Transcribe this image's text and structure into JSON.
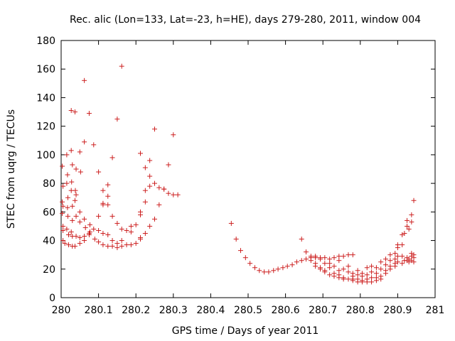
{
  "chart_data": {
    "type": "scatter",
    "title": "Rec. alic (Lon=133, Lat=-23, h=HE), days 279-280, 2011, window 004",
    "xlabel": "GPS time / Days of year 2011",
    "ylabel": "STEC from uqrg / TECUs",
    "xlim": [
      280,
      281
    ],
    "ylim": [
      0,
      180
    ],
    "xticks": [
      "280",
      "280.1",
      "280.2",
      "280.3",
      "280.4",
      "280.5",
      "280.6",
      "280.7",
      "280.8",
      "280.9",
      "281"
    ],
    "yticks": [
      "0",
      "20",
      "40",
      "60",
      "80",
      "100",
      "120",
      "140",
      "160",
      "180"
    ],
    "grid": false,
    "marker": "plus",
    "color": "#cc1f1f",
    "series": [
      {
        "points": [
          [
            280.003,
            92
          ],
          [
            280.005,
            78
          ],
          [
            280.003,
            67
          ],
          [
            280.005,
            64
          ],
          [
            280.003,
            59
          ],
          [
            280.005,
            50
          ],
          [
            280.005,
            47
          ],
          [
            280.005,
            40
          ],
          [
            280.01,
            38
          ],
          [
            280.015,
            100
          ],
          [
            280.017,
            86
          ],
          [
            280.015,
            80
          ],
          [
            280.018,
            70
          ],
          [
            280.017,
            63
          ],
          [
            280.018,
            57
          ],
          [
            280.015,
            48
          ],
          [
            280.02,
            44
          ],
          [
            280.02,
            37
          ],
          [
            280.027,
            131
          ],
          [
            280.027,
            103
          ],
          [
            280.03,
            93
          ],
          [
            280.028,
            81
          ],
          [
            280.027,
            75
          ],
          [
            280.03,
            64
          ],
          [
            280.03,
            54
          ],
          [
            280.027,
            46
          ],
          [
            280.03,
            43
          ],
          [
            280.03,
            36
          ],
          [
            280.037,
            130
          ],
          [
            280.04,
            90
          ],
          [
            280.038,
            75
          ],
          [
            280.04,
            72
          ],
          [
            280.037,
            68
          ],
          [
            280.04,
            57
          ],
          [
            280.04,
            43
          ],
          [
            280.037,
            36
          ],
          [
            280.05,
            102
          ],
          [
            280.052,
            88
          ],
          [
            280.05,
            60
          ],
          [
            280.05,
            53
          ],
          [
            280.05,
            42
          ],
          [
            280.05,
            38
          ],
          [
            280.062,
            152
          ],
          [
            280.062,
            109
          ],
          [
            280.062,
            55
          ],
          [
            280.065,
            49
          ],
          [
            280.062,
            43
          ],
          [
            280.062,
            40
          ],
          [
            280.075,
            129
          ],
          [
            280.077,
            51
          ],
          [
            280.077,
            46
          ],
          [
            280.075,
            45
          ],
          [
            280.075,
            44
          ],
          [
            280.087,
            107
          ],
          [
            280.087,
            48
          ],
          [
            280.09,
            41
          ],
          [
            280.1,
            88
          ],
          [
            280.1,
            57
          ],
          [
            280.1,
            47
          ],
          [
            280.1,
            39
          ],
          [
            280.112,
            75
          ],
          [
            280.112,
            66
          ],
          [
            280.112,
            65
          ],
          [
            280.112,
            45
          ],
          [
            280.112,
            37
          ],
          [
            280.125,
            79
          ],
          [
            280.125,
            71
          ],
          [
            280.125,
            65
          ],
          [
            280.125,
            44
          ],
          [
            280.125,
            36
          ],
          [
            280.137,
            98
          ],
          [
            280.137,
            57
          ],
          [
            280.137,
            40
          ],
          [
            280.137,
            36
          ],
          [
            280.15,
            125
          ],
          [
            280.15,
            52
          ],
          [
            280.15,
            38
          ],
          [
            280.15,
            35
          ],
          [
            280.162,
            162
          ],
          [
            280.162,
            48
          ],
          [
            280.162,
            40
          ],
          [
            280.162,
            36
          ],
          [
            280.175,
            47
          ],
          [
            280.175,
            37
          ],
          [
            280.187,
            50
          ],
          [
            280.187,
            46
          ],
          [
            280.187,
            37
          ],
          [
            280.2,
            51
          ],
          [
            280.2,
            38
          ],
          [
            280.212,
            101
          ],
          [
            280.212,
            60
          ],
          [
            280.212,
            58
          ],
          [
            280.212,
            42
          ],
          [
            280.212,
            41
          ],
          [
            280.225,
            91
          ],
          [
            280.225,
            75
          ],
          [
            280.225,
            67
          ],
          [
            280.225,
            45
          ],
          [
            280.237,
            96
          ],
          [
            280.237,
            85
          ],
          [
            280.237,
            78
          ],
          [
            280.237,
            50
          ],
          [
            280.25,
            118
          ],
          [
            280.25,
            80
          ],
          [
            280.25,
            55
          ],
          [
            280.262,
            77
          ],
          [
            280.262,
            65
          ],
          [
            280.275,
            76
          ],
          [
            280.275,
            76
          ],
          [
            280.287,
            93
          ],
          [
            280.287,
            73
          ],
          [
            280.3,
            114
          ],
          [
            280.3,
            72
          ],
          [
            280.312,
            72
          ],
          [
            280.455,
            52
          ],
          [
            280.468,
            41
          ],
          [
            280.48,
            33
          ],
          [
            280.493,
            28
          ],
          [
            280.505,
            24
          ],
          [
            280.518,
            21
          ],
          [
            280.53,
            19
          ],
          [
            280.543,
            18
          ],
          [
            280.555,
            18
          ],
          [
            280.568,
            19
          ],
          [
            280.58,
            20
          ],
          [
            280.593,
            21
          ],
          [
            280.605,
            22
          ],
          [
            280.618,
            23
          ],
          [
            280.63,
            25
          ],
          [
            280.643,
            41
          ],
          [
            280.643,
            26
          ],
          [
            280.655,
            32
          ],
          [
            280.655,
            27
          ],
          [
            280.668,
            29
          ],
          [
            280.668,
            28
          ],
          [
            280.668,
            26
          ],
          [
            280.68,
            29
          ],
          [
            280.68,
            28
          ],
          [
            280.68,
            24
          ],
          [
            280.68,
            22
          ],
          [
            280.693,
            28
          ],
          [
            280.693,
            27
          ],
          [
            280.693,
            21
          ],
          [
            280.693,
            20
          ],
          [
            280.705,
            28
          ],
          [
            280.705,
            24
          ],
          [
            280.705,
            19
          ],
          [
            280.705,
            18
          ],
          [
            280.718,
            27
          ],
          [
            280.718,
            24
          ],
          [
            280.718,
            21
          ],
          [
            280.718,
            16
          ],
          [
            280.73,
            28
          ],
          [
            280.73,
            22
          ],
          [
            280.73,
            17
          ],
          [
            280.73,
            15
          ],
          [
            280.743,
            29
          ],
          [
            280.743,
            26
          ],
          [
            280.743,
            19
          ],
          [
            280.743,
            16
          ],
          [
            280.743,
            14
          ],
          [
            280.755,
            29
          ],
          [
            280.755,
            20
          ],
          [
            280.755,
            14
          ],
          [
            280.755,
            13
          ],
          [
            280.768,
            30
          ],
          [
            280.768,
            22
          ],
          [
            280.768,
            18
          ],
          [
            280.768,
            13
          ],
          [
            280.78,
            30
          ],
          [
            280.78,
            17
          ],
          [
            280.78,
            15
          ],
          [
            280.78,
            13
          ],
          [
            280.78,
            12
          ],
          [
            280.793,
            19
          ],
          [
            280.793,
            16
          ],
          [
            280.793,
            13
          ],
          [
            280.793,
            11
          ],
          [
            280.805,
            17
          ],
          [
            280.805,
            15
          ],
          [
            280.805,
            12
          ],
          [
            280.805,
            11
          ],
          [
            280.818,
            21
          ],
          [
            280.818,
            16
          ],
          [
            280.818,
            13
          ],
          [
            280.818,
            11
          ],
          [
            280.83,
            22
          ],
          [
            280.83,
            18
          ],
          [
            280.83,
            14
          ],
          [
            280.83,
            11
          ],
          [
            280.843,
            21
          ],
          [
            280.843,
            17
          ],
          [
            280.843,
            14
          ],
          [
            280.843,
            12
          ],
          [
            280.855,
            25
          ],
          [
            280.855,
            20
          ],
          [
            280.855,
            15
          ],
          [
            280.855,
            13
          ],
          [
            280.868,
            27
          ],
          [
            280.868,
            23
          ],
          [
            280.868,
            19
          ],
          [
            280.868,
            17
          ],
          [
            280.88,
            30
          ],
          [
            280.88,
            26
          ],
          [
            280.88,
            22
          ],
          [
            280.88,
            20
          ],
          [
            280.893,
            31
          ],
          [
            280.893,
            27
          ],
          [
            280.893,
            24
          ],
          [
            280.893,
            22
          ],
          [
            280.9,
            37
          ],
          [
            280.9,
            35
          ],
          [
            280.9,
            29
          ],
          [
            280.9,
            25
          ],
          [
            280.912,
            44
          ],
          [
            280.912,
            37
          ],
          [
            280.912,
            29
          ],
          [
            280.912,
            24
          ],
          [
            280.918,
            45
          ],
          [
            280.918,
            26
          ],
          [
            280.925,
            54
          ],
          [
            280.925,
            50
          ],
          [
            280.925,
            28
          ],
          [
            280.925,
            26
          ],
          [
            280.93,
            48
          ],
          [
            280.93,
            27
          ],
          [
            280.93,
            25
          ],
          [
            280.937,
            53
          ],
          [
            280.937,
            58
          ],
          [
            280.937,
            31
          ],
          [
            280.937,
            29
          ],
          [
            280.937,
            26
          ],
          [
            280.943,
            68
          ],
          [
            280.943,
            30
          ],
          [
            280.943,
            28
          ],
          [
            280.943,
            25
          ]
        ]
      }
    ]
  }
}
